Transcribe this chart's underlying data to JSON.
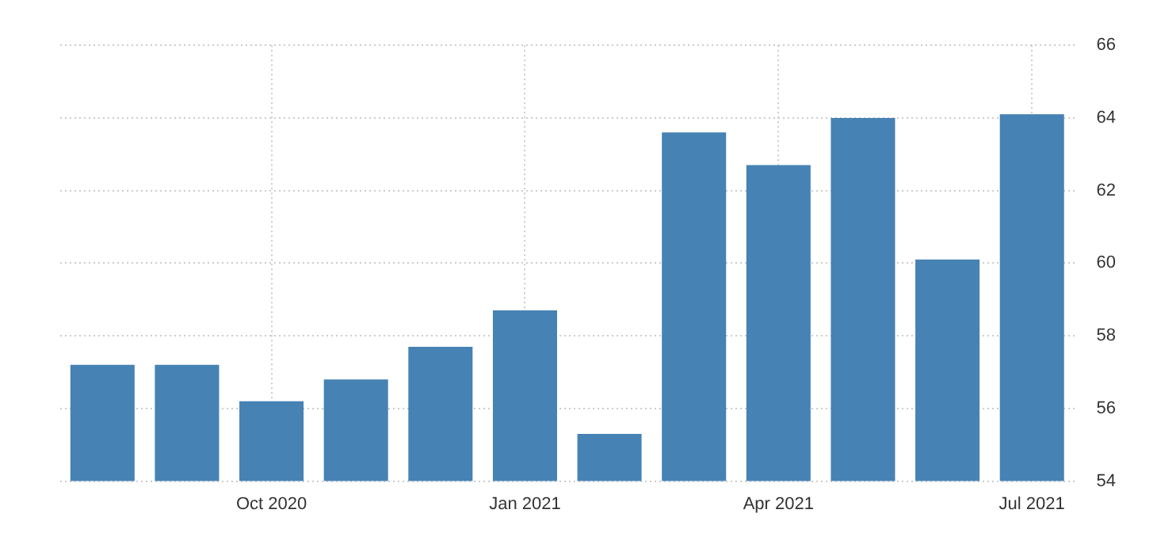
{
  "chart_data": {
    "type": "bar",
    "categories": [
      null,
      null,
      "Oct 2020",
      null,
      null,
      "Jan 2021",
      null,
      null,
      "Apr 2021",
      null,
      null,
      "Jul 2021"
    ],
    "values": [
      57.2,
      57.2,
      56.2,
      56.8,
      57.7,
      58.7,
      55.3,
      63.6,
      62.7,
      64.0,
      60.1,
      64.1
    ],
    "color": "#4682b4",
    "ylim": [
      54,
      66
    ],
    "yticks": [
      54,
      56,
      58,
      60,
      62,
      64,
      66
    ],
    "grid": true
  }
}
